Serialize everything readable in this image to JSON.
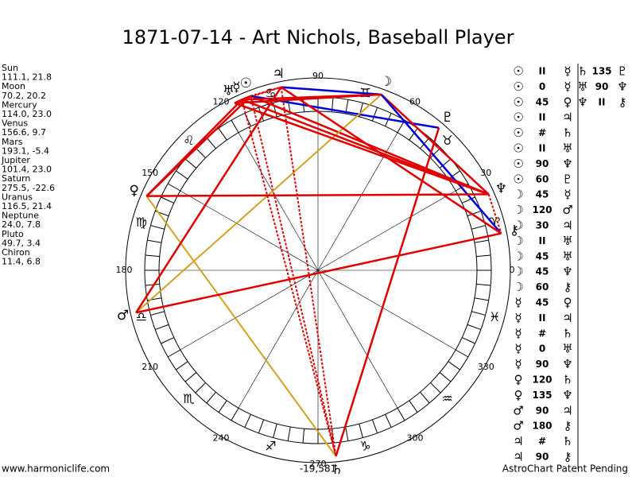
{
  "title": "1871-07-14 - Art Nichols, Baseball Player",
  "planets": [
    {
      "name": "Sun",
      "coords": "111.1, 21.8",
      "glyph": "☉"
    },
    {
      "name": "Moon",
      "coords": "70.2, 20.2",
      "glyph": "☽"
    },
    {
      "name": "Mercury",
      "coords": "114.0, 23.0",
      "glyph": "☿"
    },
    {
      "name": "Venus",
      "coords": "156.6, 9.7",
      "glyph": "♀"
    },
    {
      "name": "Mars",
      "coords": "193.1, -5.4",
      "glyph": "♂"
    },
    {
      "name": "Jupiter",
      "coords": "101.4, 23.0",
      "glyph": "♃"
    },
    {
      "name": "Saturn",
      "coords": "275.5, -22.6",
      "glyph": "♄"
    },
    {
      "name": "Uranus",
      "coords": "116.5, 21.4",
      "glyph": "♅"
    },
    {
      "name": "Neptune",
      "coords": "24.0, 7.8",
      "glyph": "♆"
    },
    {
      "name": "Pluto",
      "coords": "49.7, 3.4",
      "glyph": "♇"
    },
    {
      "name": "Chiron",
      "coords": "11.4, 6.8",
      "glyph": "⚷"
    }
  ],
  "signs": [
    "♈",
    "♉",
    "♊",
    "♋",
    "♌",
    "♍",
    "♎",
    "♏",
    "♐",
    "♑",
    "♒",
    "♓"
  ],
  "degree_labels": [
    0,
    30,
    60,
    90,
    120,
    150,
    180,
    210,
    240,
    270,
    300,
    330
  ],
  "aspects": {
    "column1": [
      [
        "☉",
        "II",
        "☿"
      ],
      [
        "☉",
        "0",
        "☿"
      ],
      [
        "☉",
        "45",
        "♀"
      ],
      [
        "☉",
        "II",
        "♃"
      ],
      [
        "☉",
        "#",
        "♄"
      ],
      [
        "☉",
        "II",
        "♅"
      ],
      [
        "☉",
        "90",
        "♆"
      ],
      [
        "☉",
        "60",
        "♇"
      ],
      [
        "☽",
        "45",
        "☿"
      ],
      [
        "☽",
        "120",
        "♂"
      ],
      [
        "☽",
        "30",
        "♃"
      ],
      [
        "☽",
        "II",
        "♅"
      ],
      [
        "☽",
        "45",
        "♅"
      ],
      [
        "☽",
        "45",
        "♆"
      ],
      [
        "☽",
        "60",
        "⚷"
      ],
      [
        "☿",
        "45",
        "♀"
      ],
      [
        "☿",
        "II",
        "♃"
      ],
      [
        "☿",
        "#",
        "♄"
      ],
      [
        "☿",
        "0",
        "♅"
      ],
      [
        "☿",
        "90",
        "♆"
      ],
      [
        "♀",
        "120",
        "♄"
      ],
      [
        "♀",
        "135",
        "♆"
      ],
      [
        "♂",
        "90",
        "♃"
      ],
      [
        "♂",
        "180",
        "⚷"
      ],
      [
        "♃",
        "#",
        "♄"
      ],
      [
        "♃",
        "90",
        "⚷"
      ]
    ],
    "column2": [
      [
        "♄",
        "135",
        "♇"
      ],
      [
        "♅",
        "90",
        "♆"
      ],
      [
        "♆",
        "II",
        "⚷"
      ]
    ]
  },
  "footer": {
    "left": "www.harmoniclife.com",
    "center": "-19,581",
    "right": "AstroChart Patent Pending"
  }
}
